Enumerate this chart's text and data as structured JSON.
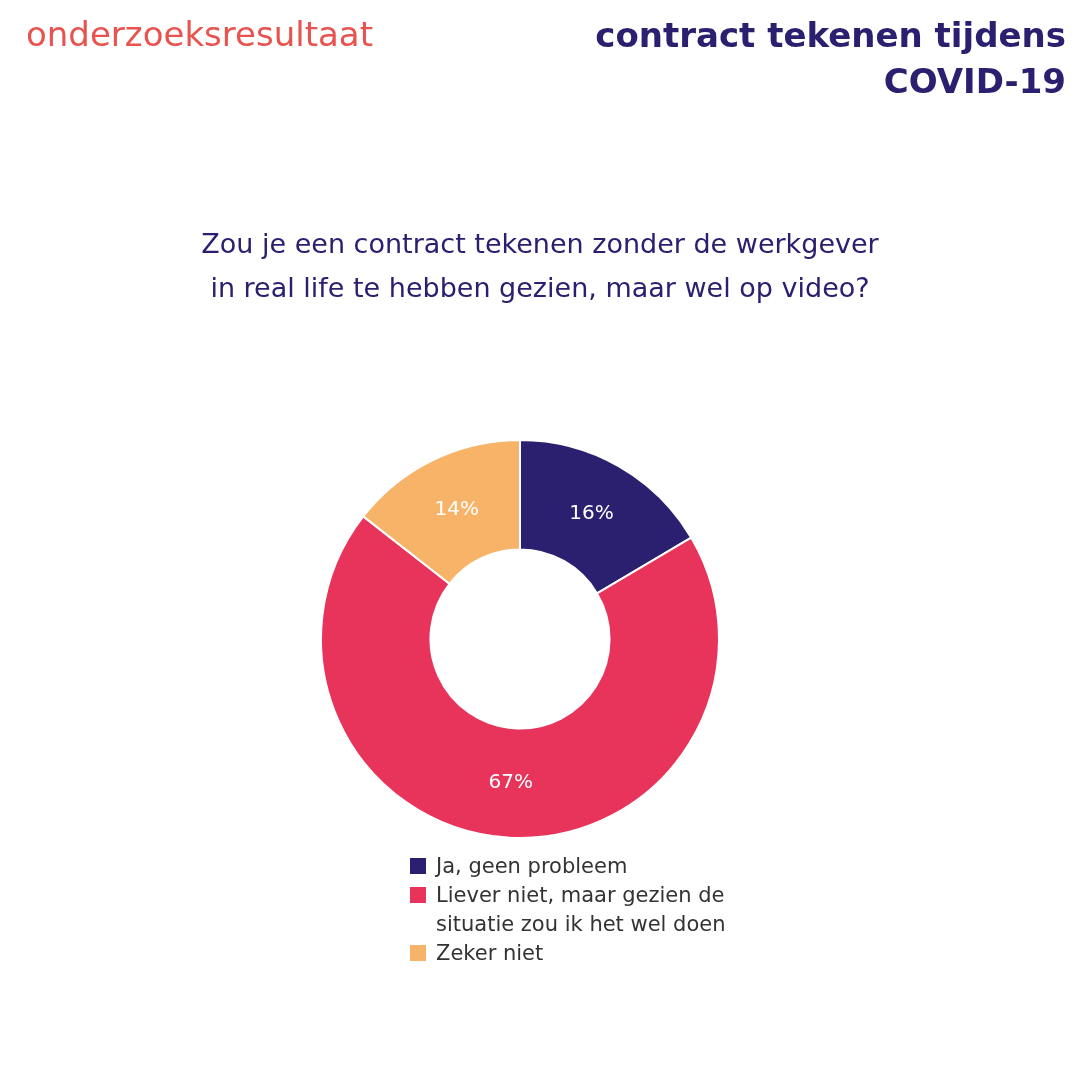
{
  "chart_data": {
    "type": "donut",
    "title": "contract tekenen tijdens COVID-19",
    "subtitle": "Zou je een contract tekenen zonder de werkgever in real life te hebben gezien, maar wel op video?",
    "annotations": [
      "onderzoeksresultaat"
    ],
    "categories": [
      "Ja, geen probleem",
      "Liever niet, maar gezien de situatie zou ik het wel doen",
      "Zeker niet"
    ],
    "values": [
      16,
      67,
      14
    ],
    "colors": [
      "#2b2070",
      "#e8345a",
      "#f7b469"
    ],
    "value_labels": [
      "16%",
      "67%",
      "14%"
    ],
    "legend": "bottom"
  }
}
